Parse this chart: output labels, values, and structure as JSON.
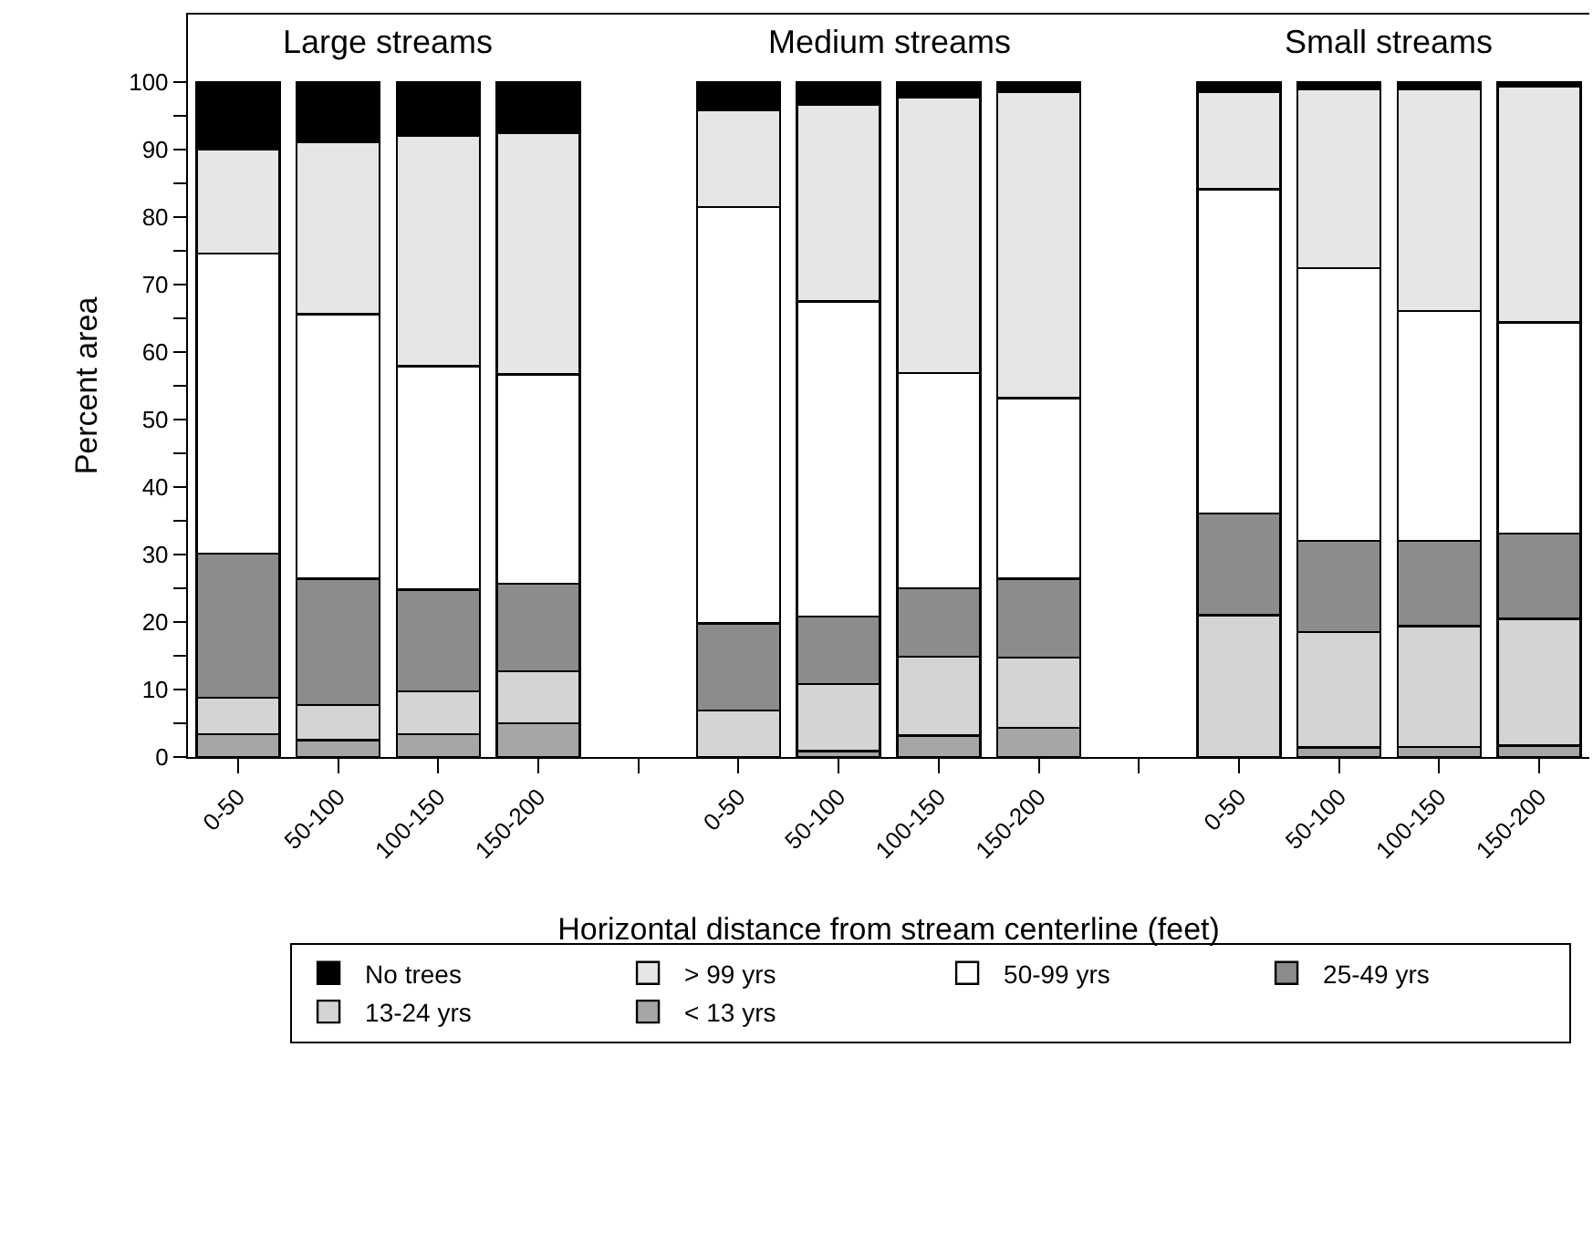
{
  "chart_data": {
    "type": "bar",
    "stacked": true,
    "ylabel": "Percent area",
    "xlabel": "Horizontal distance from stream centerline (feet)",
    "annotations": [
      "Large streams",
      "Medium streams",
      "Small streams"
    ],
    "categories": [
      "0-50",
      "50-100",
      "100-150",
      "150-200",
      null,
      "0-50",
      "50-100",
      "100-150",
      "150-200",
      null,
      "0-50",
      "50-100",
      "100-150",
      "150-200"
    ],
    "series": [
      {
        "name": "< 13 yrs",
        "color": "#a6a6a6",
        "values": [
          3.4,
          2.5,
          3.4,
          5.0,
          null,
          0,
          0.9,
          3.2,
          4.3,
          null,
          0,
          1.4,
          1.5,
          1.7
        ]
      },
      {
        "name": "13-24 yrs",
        "color": "#d4d4d4",
        "values": [
          5.4,
          5.2,
          6.3,
          7.7,
          null,
          6.9,
          9.9,
          11.7,
          10.4,
          null,
          21.0,
          17.1,
          17.9,
          18.8
        ]
      },
      {
        "name": "25-49 yrs",
        "color": "#8c8c8c",
        "values": [
          21.3,
          18.7,
          15.1,
          13.0,
          null,
          12.9,
          10.0,
          10.1,
          11.7,
          null,
          15.1,
          13.5,
          12.6,
          12.6
        ]
      },
      {
        "name": "50-99 yrs",
        "color": "#ffffff",
        "values": [
          44.5,
          39.2,
          33.1,
          31.0,
          null,
          61.7,
          46.7,
          31.9,
          26.8,
          null,
          48.0,
          40.4,
          34.1,
          31.3
        ]
      },
      {
        "name": "> 99 yrs",
        "color": "#e6e6e6",
        "values": [
          15.4,
          25.5,
          34.2,
          35.7,
          null,
          14.4,
          29.1,
          40.8,
          45.4,
          null,
          14.5,
          26.6,
          32.9,
          34.9
        ]
      },
      {
        "name": "No trees",
        "color": "#000000",
        "values": [
          10.0,
          8.9,
          7.9,
          7.6,
          null,
          4.1,
          3.4,
          2.3,
          1.4,
          null,
          1.4,
          1.0,
          1.0,
          0.7
        ]
      }
    ],
    "ylim": [
      0,
      110
    ],
    "yticks": [
      0,
      {
        "value": 5,
        "label": null
      },
      10,
      {
        "value": 15,
        "label": null
      },
      20,
      {
        "value": 25,
        "label": null
      },
      30,
      {
        "value": 35,
        "label": null
      },
      40,
      {
        "value": 45,
        "label": null
      },
      50,
      {
        "value": 55,
        "label": null
      },
      60,
      {
        "value": 65,
        "label": null
      },
      70,
      {
        "value": 75,
        "label": null
      },
      80,
      {
        "value": 85,
        "label": null
      },
      90,
      {
        "value": 95,
        "label": null
      },
      100
    ],
    "grid": false,
    "legend": "bottom"
  }
}
